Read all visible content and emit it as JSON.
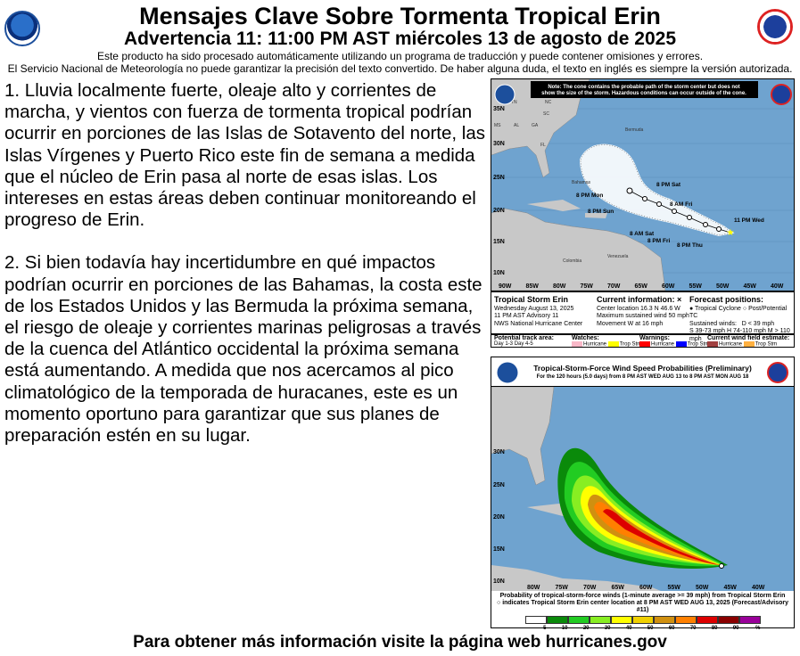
{
  "header": {
    "title": "Mensajes Clave Sobre Tormenta Tropical Erin",
    "subtitle": "Advertencia 11: 11:00 PM AST miércoles 13 de agosto de 2025",
    "disclaimer1": "Este producto ha sido procesado automáticamente utilizando un programa de traducción y puede contener omisiones y errores.",
    "disclaimer2": "El Servicio Nacional de Meteorología no puede garantizar la precisión del texto convertido. De haber alguna duda, el texto en inglés es siempre la versión autorizada.",
    "logos": [
      "NOAA",
      "National Weather Service"
    ]
  },
  "messages": [
    "1. Lluvia localmente fuerte, oleaje alto y corrientes de marcha, y vientos con fuerza de tormenta tropical podrían ocurrir en porciones de las Islas de Sotavento del norte, las Islas Vírgenes y Puerto Rico este fin de semana a medida que el núcleo de Erin pasa al norte de esas islas. Los intereses en estas áreas deben continuar monitoreando el progreso de Erin.",
    "2. Si bien todavía hay incertidumbre en qué impactos podrían ocurrir en porciones de las Bahamas, la costa este de los Estados Unidos y las Bermuda la próxima semana, el riesgo de oleaje y corrientes marinas peligrosas a través de la cuenca del Atlántico occidental la próxima semana está aumentando. A medida que nos acercamos al pico climatológico de la temporada de huracanes, este es un momento oportuno para garantizar que sus planes de preparación estén en su lugar."
  ],
  "cone_map": {
    "note": "Note: The cone contains the probable path of the storm center but does not show the size of the storm. Hazardous conditions can occur outside of the cone.",
    "lat_labels": [
      "35N",
      "30N",
      "25N",
      "20N",
      "15N",
      "10N"
    ],
    "lon_labels": [
      "90W",
      "85W",
      "80W",
      "75W",
      "70W",
      "65W",
      "60W",
      "55W",
      "50W",
      "45W",
      "40W"
    ],
    "place_labels": [
      "TN",
      "NC",
      "SC",
      "MS",
      "AL",
      "GA",
      "FL",
      "Bermuda",
      "Bahamas",
      "Colombia",
      "Venezuela"
    ],
    "forecast_labels": [
      "8 PM Sat",
      "8 PM Mon",
      "8 PM Sun",
      "8 AM Fri",
      "11 PM Wed",
      "8 AM Sat",
      "8 PM Fri",
      "8 PM Thu"
    ],
    "storm_name": "Tropical Storm Erin",
    "date": "Wednesday August 13, 2025",
    "advisory": "11 PM AST Advisory 11",
    "center": "NWS National Hurricane Center",
    "current_title": "Current information: ×",
    "current": [
      "Center location 16.3 N 46.6 W",
      "Maximum sustained wind 50 mph",
      "Movement W at 16 mph"
    ],
    "forecast_title": "Forecast positions:",
    "forecast_items": [
      "Tropical Cyclone",
      "Post/Potential TC",
      "Sustained winds:",
      "D < 39 mph",
      "S 39-73 mph  H 74-110 mph  M > 110 mph"
    ],
    "legend": {
      "track_title": "Potential track area:",
      "day13": "Day 1-3",
      "day45": "Day 4-5",
      "watches_title": "Watches:",
      "warnings_title": "Warnings:",
      "wind_title": "Current wind field estimate:",
      "hurricane": "Hurricane",
      "tropstm": "Trop Stm",
      "colors": {
        "watch_hurricane": "#f9b8c8",
        "watch_trop": "#ffff00",
        "warn_hurricane": "#ff0000",
        "warn_trop": "#0000ff",
        "wind_hurricane": "#a04040",
        "wind_trop": "#ffb040"
      }
    }
  },
  "wind_map": {
    "title": "Tropical-Storm-Force Wind Speed Probabilities (Preliminary)",
    "subtitle": "For the 120 hours (5.0 days) from 8 PM AST WED AUG 13 to 8 PM AST MON AUG 18",
    "lat_labels": [
      "30N",
      "25N",
      "20N",
      "15N",
      "10N"
    ],
    "lon_labels": [
      "80W",
      "75W",
      "70W",
      "65W",
      "60W",
      "55W",
      "50W",
      "45W",
      "40W"
    ],
    "caption1": "Probability of tropical-storm-force winds (1-minute average >= 39 mph) from Tropical Storm Erin",
    "caption2": "○ indicates Tropical Storm Erin center location at 8 PM AST WED AUG 13, 2025 (Forecast/Advisory #11)",
    "scale_labels": [
      "5",
      "10",
      "20",
      "30",
      "40",
      "50",
      "60",
      "70",
      "80",
      "90",
      "%"
    ],
    "scale_colors": [
      "#ffffff",
      "#0a8a0a",
      "#22cc22",
      "#88ee22",
      "#ffff00",
      "#f0d000",
      "#d09010",
      "#ff8000",
      "#dd0000",
      "#8a0000",
      "#990099"
    ]
  },
  "footer": "Para obtener más información visite la página web hurricanes.gov",
  "colors": {
    "ocean": "#6fa3cf",
    "land": "#c8c8c8"
  }
}
